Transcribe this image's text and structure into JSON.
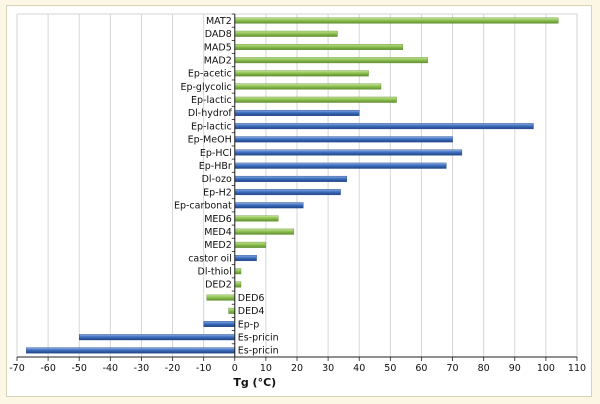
{
  "chart_data": {
    "type": "bar",
    "orientation": "horizontal",
    "title": "",
    "xlabel": "Tg (°C)",
    "ylabel": "",
    "xlim": [
      -70,
      110
    ],
    "xticks": [
      -70,
      -60,
      -50,
      -40,
      -30,
      -20,
      -10,
      0,
      10,
      20,
      30,
      40,
      50,
      60,
      70,
      80,
      90,
      100,
      110
    ],
    "grid": "vertical",
    "legend": "none",
    "colors": {
      "green": "#8fc254",
      "blue": "#3f6fbf"
    },
    "bars": [
      {
        "label": "MAT2",
        "value": 104,
        "color": "green"
      },
      {
        "label": "DAD8",
        "value": 33,
        "color": "green"
      },
      {
        "label": "MAD5",
        "value": 54,
        "color": "green"
      },
      {
        "label": "MAD2",
        "value": 62,
        "color": "green"
      },
      {
        "label": "Ep-acetic",
        "value": 43,
        "color": "green"
      },
      {
        "label": "Ep-glycolic",
        "value": 47,
        "color": "green"
      },
      {
        "label": "Ep-lactic",
        "value": 52,
        "color": "green"
      },
      {
        "label": "Dl-hydrof",
        "value": 40,
        "color": "blue"
      },
      {
        "label": "Ep-lactic",
        "value": 96,
        "color": "blue"
      },
      {
        "label": "Ep-MeOH",
        "value": 70,
        "color": "blue"
      },
      {
        "label": "Ep-HCl",
        "value": 73,
        "color": "blue"
      },
      {
        "label": "Ep-HBr",
        "value": 68,
        "color": "blue"
      },
      {
        "label": "Dl-ozo",
        "value": 36,
        "color": "blue"
      },
      {
        "label": "Ep-H2",
        "value": 34,
        "color": "blue"
      },
      {
        "label": "Ep-carbonat",
        "value": 22,
        "color": "blue"
      },
      {
        "label": "MED6",
        "value": 14,
        "color": "green"
      },
      {
        "label": "MED4",
        "value": 19,
        "color": "green"
      },
      {
        "label": "MED2",
        "value": 10,
        "color": "green"
      },
      {
        "label": "castor oil",
        "value": 7,
        "color": "blue"
      },
      {
        "label": "Dl-thiol",
        "value": 2,
        "color": "green"
      },
      {
        "label": "DED2",
        "value": 2,
        "color": "green"
      },
      {
        "label": "DED6",
        "value": -9,
        "color": "green"
      },
      {
        "label": "DED4",
        "value": -2,
        "color": "green"
      },
      {
        "label": "Ep-p",
        "value": -10,
        "color": "blue"
      },
      {
        "label": "Es-pricin",
        "value": -50,
        "color": "blue"
      },
      {
        "label": "Es-pricin",
        "value": -67,
        "color": "blue"
      }
    ]
  }
}
